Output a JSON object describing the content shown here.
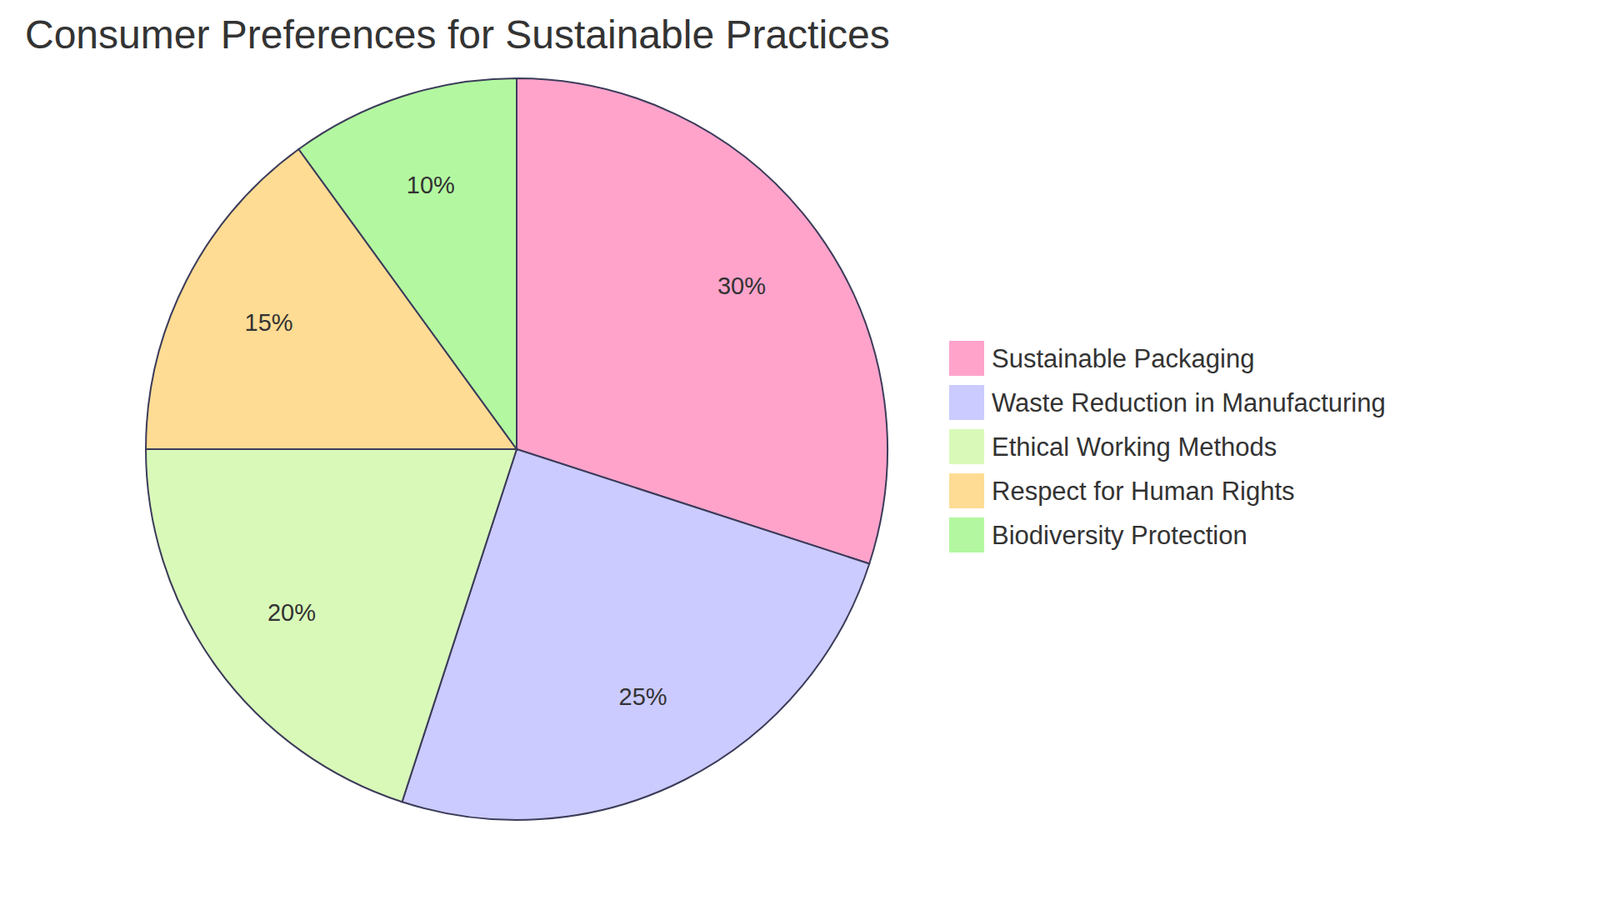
{
  "chart_data": {
    "type": "pie",
    "title": "Consumer Preferences for Sustainable Practices",
    "categories": [
      "Sustainable Packaging",
      "Waste Reduction in Manufacturing",
      "Ethical Working Methods",
      "Respect for Human Rights",
      "Biodiversity Protection"
    ],
    "values": [
      30,
      25,
      20,
      15,
      10
    ],
    "value_labels": [
      "30%",
      "25%",
      "20%",
      "15%",
      "10%"
    ],
    "colors": [
      "#ffa3cb",
      "#cbcbff",
      "#d9f9b9",
      "#ffdc94",
      "#b3f8a0"
    ],
    "data_labels": true,
    "legend": "right"
  }
}
